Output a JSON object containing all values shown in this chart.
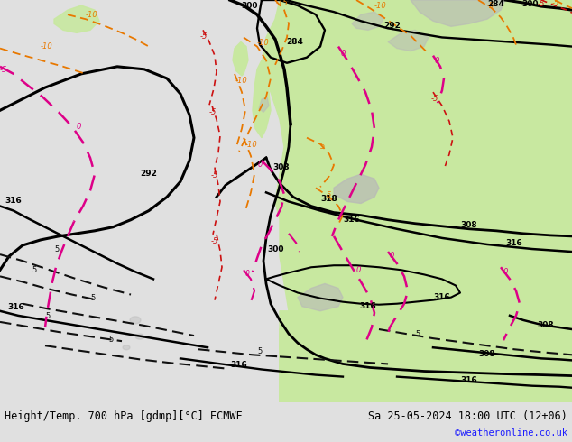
{
  "title_left": "Height/Temp. 700 hPa [gdmp][°C] ECMWF",
  "title_right": "Sa 25-05-2024 18:00 UTC (12+06)",
  "credit": "©weatheronline.co.uk",
  "ocean_color": "#d8d8d8",
  "land_color": "#c8e8a0",
  "gray_topo_color": "#b8b8b8",
  "land_green_light": "#d0eca0",
  "bottom_bar_color": "#e0e0e0",
  "title_fontsize": 8.5,
  "credit_fontsize": 7.5,
  "credit_color": "#1a1aff",
  "black_contour_lw": 1.9,
  "orange_color": "#e87800",
  "red_color": "#cc1111",
  "pink_color": "#dd0088",
  "black_dash_color": "#111111"
}
